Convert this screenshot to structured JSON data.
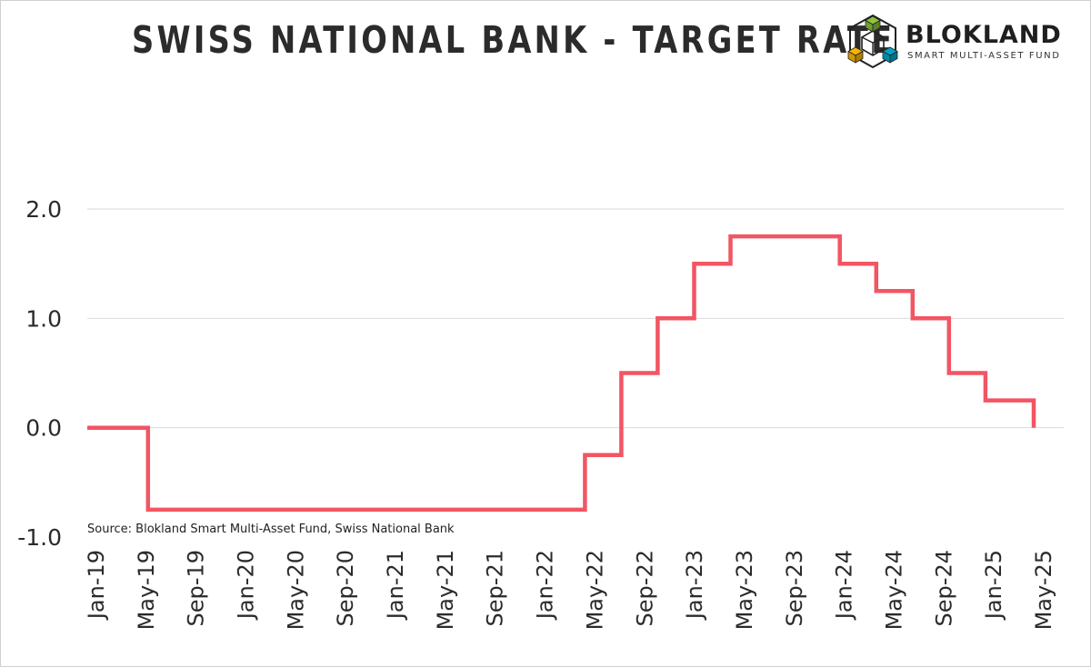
{
  "header": {
    "title": "SWISS NATIONAL BANK - TARGET RATE"
  },
  "logo": {
    "name": "BLOKLAND",
    "tagline": "SMART MULTI-ASSET FUND",
    "colors": [
      "#8dc63f",
      "#f7b500",
      "#00a3c7"
    ],
    "icon": "cube-logo-icon"
  },
  "source_note": "Source: Blokland Smart Multi-Asset Fund, Swiss National Bank",
  "chart_data": {
    "type": "line",
    "step": true,
    "title": "SWISS NATIONAL BANK - TARGET RATE",
    "xlabel": "",
    "ylabel": "",
    "ylim": [
      -1.0,
      2.0
    ],
    "yticks": [
      2.0,
      1.0,
      0.0,
      -1.0
    ],
    "ytick_labels": [
      "2.0",
      "1.0",
      "0.0",
      "-1.0"
    ],
    "xlim": [
      "2019-01",
      "2025-08"
    ],
    "xtick_labels": [
      "Jan-19",
      "May-19",
      "Sep-19",
      "Jan-20",
      "May-20",
      "Sep-20",
      "Jan-21",
      "May-21",
      "Sep-21",
      "Jan-22",
      "May-22",
      "Sep-22",
      "Jan-23",
      "May-23",
      "Sep-23",
      "Jan-24",
      "May-24",
      "Sep-24",
      "Jan-25",
      "May-25"
    ],
    "grid": true,
    "line_color": "#f25563",
    "series": [
      {
        "x": [
          "2019-01",
          "2019-06",
          "2019-06",
          "2022-06",
          "2022-06",
          "2022-09",
          "2022-09",
          "2022-12",
          "2022-12",
          "2023-03",
          "2023-03",
          "2023-06",
          "2023-06",
          "2024-03",
          "2024-03",
          "2024-06",
          "2024-06",
          "2024-09",
          "2024-09",
          "2024-12",
          "2024-12",
          "2025-03",
          "2025-03",
          "2025-06",
          "2025-06",
          "2025-06"
        ],
        "values": [
          0.0,
          0.0,
          -0.75,
          -0.75,
          -0.25,
          -0.25,
          0.5,
          0.5,
          1.0,
          1.0,
          1.5,
          1.5,
          1.75,
          1.75,
          1.5,
          1.5,
          1.25,
          1.25,
          1.0,
          1.0,
          0.5,
          0.5,
          0.25,
          0.25,
          0.25,
          0.0
        ]
      }
    ]
  }
}
